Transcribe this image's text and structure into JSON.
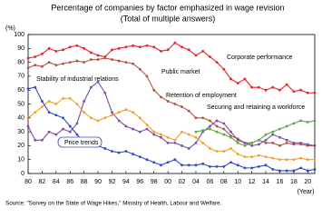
{
  "chart_data": {
    "type": "line",
    "title": "Percentage of companies by factor emphasized in wage revision",
    "subtitle": "(Total of multiple answers)",
    "y_label": "(%)",
    "x_label": "(Year)",
    "source": "Source: \"Survey on the State of Wage Hikes,\" Ministry of Health, Labour and Welfare.",
    "x": [
      1980,
      1981,
      1982,
      1983,
      1984,
      1985,
      1986,
      1987,
      1988,
      1989,
      1990,
      1991,
      1992,
      1993,
      1994,
      1995,
      1996,
      1997,
      1998,
      1999,
      2000,
      2001,
      2002,
      2003,
      2004,
      2005,
      2006,
      2007,
      2008,
      2009,
      2010,
      2011,
      2012,
      2013,
      2014,
      2015,
      2016,
      2017,
      2018,
      2019,
      2020,
      2021
    ],
    "xlim": [
      1980,
      2021
    ],
    "xticks": [
      {
        "value": 1980,
        "label": "80"
      },
      {
        "value": 1982,
        "label": "82"
      },
      {
        "value": 1984,
        "label": "84"
      },
      {
        "value": 1986,
        "label": "86"
      },
      {
        "value": 1988,
        "label": "88"
      },
      {
        "value": 1990,
        "label": "90"
      },
      {
        "value": 1992,
        "label": "92"
      },
      {
        "value": 1994,
        "label": "94"
      },
      {
        "value": 1996,
        "label": "96"
      },
      {
        "value": 1998,
        "label": "98"
      },
      {
        "value": 2000,
        "label": "00"
      },
      {
        "value": 2002,
        "label": "02"
      },
      {
        "value": 2004,
        "label": "04"
      },
      {
        "value": 2006,
        "label": "06"
      },
      {
        "value": 2008,
        "label": "08"
      },
      {
        "value": 2010,
        "label": "10"
      },
      {
        "value": 2012,
        "label": "12"
      },
      {
        "value": 2014,
        "label": "14"
      },
      {
        "value": 2016,
        "label": "16"
      },
      {
        "value": 2018,
        "label": "18"
      },
      {
        "value": 2020,
        "label": "20"
      }
    ],
    "ylim": [
      0,
      100
    ],
    "yticks": [
      0,
      10,
      20,
      30,
      40,
      50,
      60,
      70,
      80,
      90,
      100
    ],
    "series": [
      {
        "name": "Corporate performance",
        "color": "#e4222b",
        "values": [
          83,
          84,
          86,
          90,
          88,
          89,
          91,
          92,
          90,
          87,
          85,
          84,
          89,
          90,
          91,
          92,
          91,
          92,
          91,
          88,
          89,
          94,
          91,
          89,
          85,
          88,
          84,
          80,
          75,
          68,
          65,
          68,
          62,
          62,
          60,
          62,
          60,
          64,
          59,
          60,
          58,
          58
        ]
      },
      {
        "name": "Public market",
        "color": "#b0533e",
        "values": [
          76,
          78,
          77,
          80,
          78,
          79,
          80,
          81,
          80,
          82,
          82,
          83,
          82,
          81,
          80,
          79,
          75,
          70,
          60,
          55,
          52,
          50,
          48,
          45,
          40,
          40,
          38,
          34,
          32,
          27,
          25,
          22,
          22,
          24,
          22,
          22,
          20,
          22,
          21,
          21,
          20,
          20
        ]
      },
      {
        "name": "Stability of industrial relations",
        "color": "#7b4fa6",
        "values": [
          34,
          24,
          24,
          30,
          28,
          32,
          30,
          36,
          52,
          62,
          66,
          58,
          44,
          38,
          34,
          32,
          30,
          32,
          28,
          26,
          22,
          22,
          20,
          18,
          22,
          30,
          34,
          38,
          36,
          30,
          24,
          22,
          20,
          21,
          24,
          28,
          26,
          24,
          22,
          22,
          21,
          20
        ]
      },
      {
        "name": "Retention of employment",
        "color": "#f0a030",
        "values": [
          40,
          44,
          48,
          52,
          50,
          54,
          54,
          50,
          44,
          40,
          38,
          40,
          42,
          44,
          46,
          44,
          40,
          35,
          30,
          28,
          26,
          24,
          30,
          28,
          26,
          22,
          18,
          16,
          16,
          18,
          14,
          12,
          12,
          13,
          12,
          11,
          10,
          10,
          10,
          11,
          10,
          10
        ]
      },
      {
        "name": "Securing and retaining a workforce",
        "color": "#5aa845",
        "values": [
          null,
          null,
          null,
          null,
          null,
          null,
          null,
          null,
          null,
          null,
          null,
          null,
          null,
          null,
          null,
          null,
          null,
          null,
          null,
          null,
          null,
          null,
          null,
          null,
          30,
          31,
          32,
          30,
          28,
          26,
          22,
          20,
          22,
          24,
          28,
          30,
          32,
          34,
          36,
          38,
          37,
          38
        ]
      },
      {
        "name": "Price trends",
        "color": "#3347c4",
        "values": [
          61,
          62,
          52,
          44,
          42,
          40,
          34,
          28,
          22,
          20,
          20,
          18,
          16,
          15,
          16,
          14,
          12,
          10,
          8,
          6,
          8,
          10,
          6,
          6,
          6,
          7,
          5,
          5,
          5,
          8,
          6,
          4,
          4,
          5,
          6,
          3,
          2,
          2,
          2,
          4,
          2,
          3
        ]
      }
    ]
  }
}
